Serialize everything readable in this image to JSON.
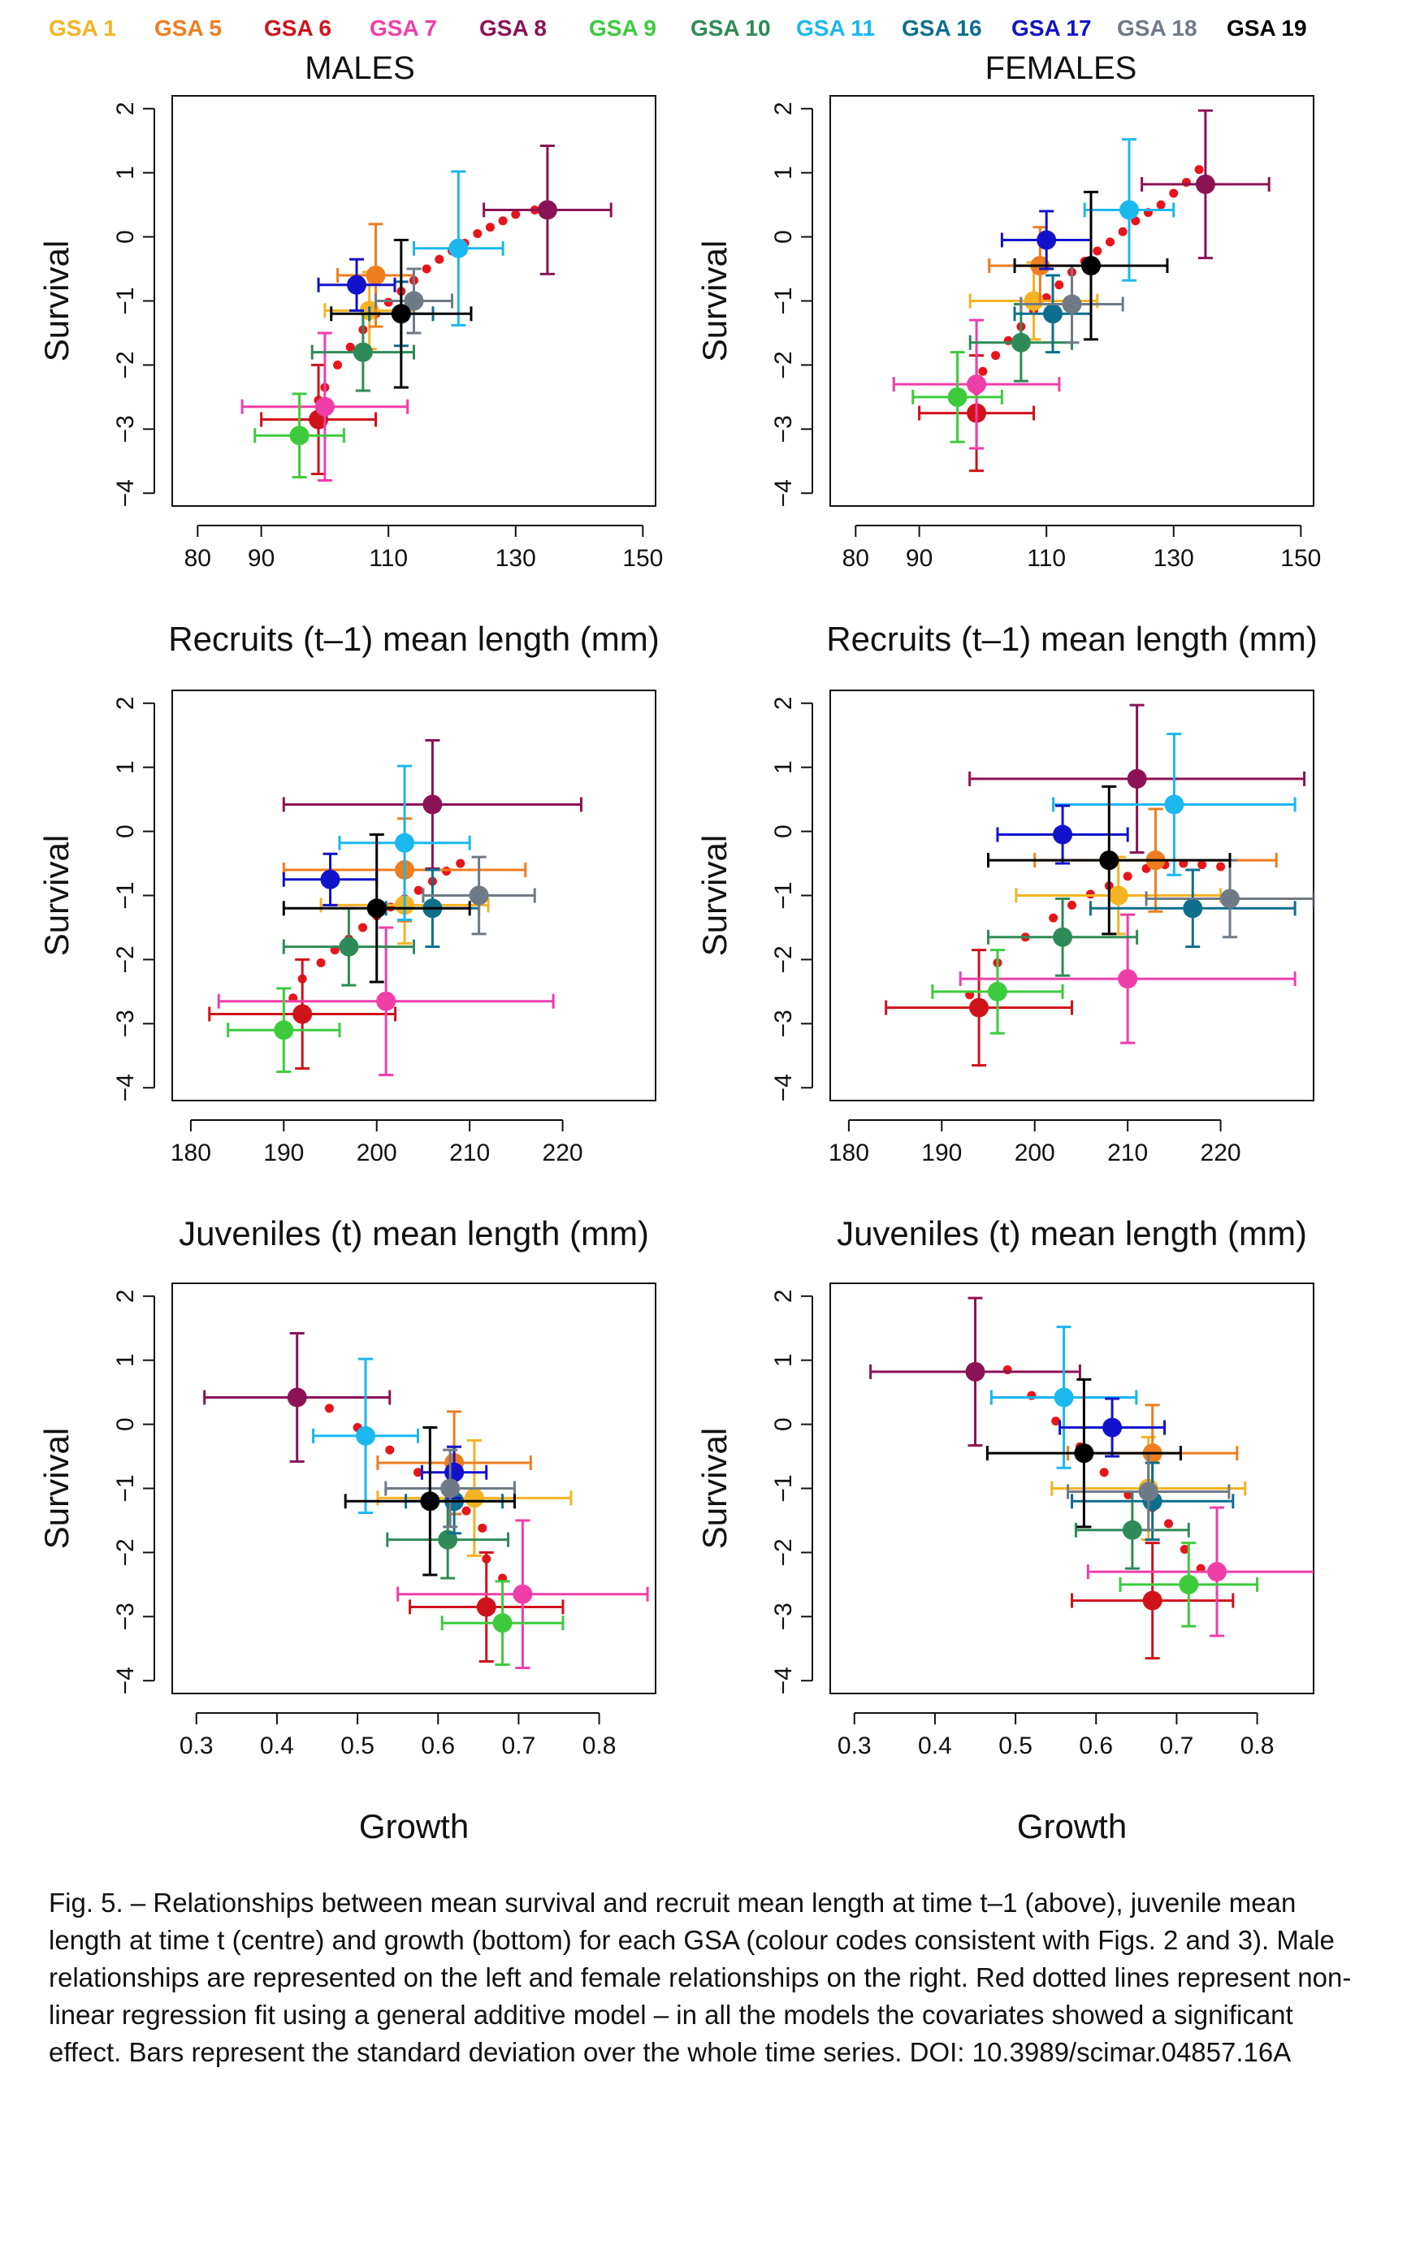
{
  "legend": [
    {
      "name": "GSA 1",
      "color": "#F5B324"
    },
    {
      "name": "GSA 5",
      "color": "#EE7D1F"
    },
    {
      "name": "GSA 6",
      "color": "#D0121B"
    },
    {
      "name": "GSA 7",
      "color": "#F03EA8"
    },
    {
      "name": "GSA 8",
      "color": "#8B1355"
    },
    {
      "name": "GSA 9",
      "color": "#3DCB3D"
    },
    {
      "name": "GSA 10",
      "color": "#2E8B57"
    },
    {
      "name": "GSA 11",
      "color": "#1BB8EE"
    },
    {
      "name": "GSA 16",
      "color": "#0E6E8E"
    },
    {
      "name": "GSA 17",
      "color": "#1212CC"
    },
    {
      "name": "GSA 18",
      "color": "#6F7A86"
    },
    {
      "name": "GSA 19",
      "color": "#000000"
    }
  ],
  "column_titles": [
    "MALES",
    "FEMALES"
  ],
  "caption": "Fig. 5. – Relationships between mean survival and recruit mean length at time t–1 (above), juvenile mean length at time t (centre) and growth (bottom) for each GSA (colour codes consistent with Figs. 2 and 3). Male relationships are represented on the left and female relationships on the right. Red dotted lines represent non-linear regression fit using a general additive model – in all the models the covariates showed a significant effect. Bars represent the standard deviation over the whole time series. DOI: 10.3989/scimar.04857.16A",
  "fit_color": "#E8141B",
  "chart_data": [
    {
      "type": "scatter",
      "panel": "males-recruits",
      "xlabel": "Recruits (t–1) mean length (mm)",
      "ylabel": "Survival",
      "xlim": [
        76,
        152
      ],
      "ylim": [
        -4.2,
        2.2
      ],
      "xticks": [
        80,
        90,
        110,
        130,
        150
      ],
      "yticks": [
        -4,
        -3,
        -2,
        -1,
        0,
        1,
        2
      ],
      "points": [
        {
          "gsa": "GSA 1",
          "x": 107,
          "y": -1.15,
          "xerr": 7,
          "yerr": 0.6
        },
        {
          "gsa": "GSA 5",
          "x": 108,
          "y": -0.6,
          "xerr": 6,
          "yerr": 0.8
        },
        {
          "gsa": "GSA 6",
          "x": 99,
          "y": -2.85,
          "xerr": 9,
          "yerr": 0.85
        },
        {
          "gsa": "GSA 7",
          "x": 100,
          "y": -2.65,
          "xerr": 13,
          "yerr": 1.15
        },
        {
          "gsa": "GSA 8",
          "x": 135,
          "y": 0.42,
          "xerr": 10,
          "yerr": 1.0
        },
        {
          "gsa": "GSA 9",
          "x": 96,
          "y": -3.1,
          "xerr": 7,
          "yerr": 0.65
        },
        {
          "gsa": "GSA 10",
          "x": 106,
          "y": -1.8,
          "xerr": 8,
          "yerr": 0.6
        },
        {
          "gsa": "GSA 11",
          "x": 121,
          "y": -0.18,
          "xerr": 7,
          "yerr": 1.2
        },
        {
          "gsa": "GSA 16",
          "x": 112,
          "y": -1.2,
          "xerr": 5,
          "yerr": 0.5
        },
        {
          "gsa": "GSA 17",
          "x": 105,
          "y": -0.75,
          "xerr": 6,
          "yerr": 0.4
        },
        {
          "gsa": "GSA 18",
          "x": 114,
          "y": -1.0,
          "xerr": 6,
          "yerr": 0.5
        },
        {
          "gsa": "GSA 19",
          "x": 112,
          "y": -1.2,
          "xerr": 11,
          "yerr": 1.15
        }
      ],
      "fit": [
        [
          99,
          -2.55
        ],
        [
          100,
          -2.35
        ],
        [
          102,
          -2.0
        ],
        [
          104,
          -1.72
        ],
        [
          106,
          -1.45
        ],
        [
          108,
          -1.2
        ],
        [
          110,
          -1.02
        ],
        [
          112,
          -0.85
        ],
        [
          114,
          -0.68
        ],
        [
          116,
          -0.5
        ],
        [
          118,
          -0.35
        ],
        [
          120,
          -0.22
        ],
        [
          122,
          -0.1
        ],
        [
          124,
          0.05
        ],
        [
          126,
          0.15
        ],
        [
          128,
          0.25
        ],
        [
          130,
          0.35
        ],
        [
          133,
          0.42
        ]
      ]
    },
    {
      "type": "scatter",
      "panel": "females-recruits",
      "xlabel": "Recruits (t–1) mean length (mm)",
      "ylabel": "Survival",
      "xlim": [
        76,
        152
      ],
      "ylim": [
        -4.2,
        2.2
      ],
      "xticks": [
        80,
        90,
        110,
        130,
        150
      ],
      "yticks": [
        -4,
        -3,
        -2,
        -1,
        0,
        1,
        2
      ],
      "points": [
        {
          "gsa": "GSA 1",
          "x": 108,
          "y": -1.0,
          "xerr": 10,
          "yerr": 0.6
        },
        {
          "gsa": "GSA 5",
          "x": 109,
          "y": -0.45,
          "xerr": 8,
          "yerr": 0.6
        },
        {
          "gsa": "GSA 6",
          "x": 99,
          "y": -2.75,
          "xerr": 9,
          "yerr": 0.9
        },
        {
          "gsa": "GSA 7",
          "x": 99,
          "y": -2.3,
          "xerr": 13,
          "yerr": 1.0
        },
        {
          "gsa": "GSA 8",
          "x": 135,
          "y": 0.82,
          "xerr": 10,
          "yerr": 1.15
        },
        {
          "gsa": "GSA 9",
          "x": 96,
          "y": -2.5,
          "xerr": 7,
          "yerr": 0.7
        },
        {
          "gsa": "GSA 10",
          "x": 106,
          "y": -1.65,
          "xerr": 8,
          "yerr": 0.6
        },
        {
          "gsa": "GSA 11",
          "x": 123,
          "y": 0.42,
          "xerr": 7,
          "yerr": 1.1
        },
        {
          "gsa": "GSA 16",
          "x": 111,
          "y": -1.2,
          "xerr": 6,
          "yerr": 0.6
        },
        {
          "gsa": "GSA 17",
          "x": 110,
          "y": -0.05,
          "xerr": 7,
          "yerr": 0.45
        },
        {
          "gsa": "GSA 18",
          "x": 114,
          "y": -1.05,
          "xerr": 8,
          "yerr": 0.6
        },
        {
          "gsa": "GSA 19",
          "x": 117,
          "y": -0.45,
          "xerr": 12,
          "yerr": 1.15
        }
      ],
      "fit": [
        [
          99,
          -2.4
        ],
        [
          100,
          -2.1
        ],
        [
          102,
          -1.85
        ],
        [
          104,
          -1.62
        ],
        [
          106,
          -1.4
        ],
        [
          108,
          -1.15
        ],
        [
          110,
          -0.95
        ],
        [
          112,
          -0.75
        ],
        [
          114,
          -0.55
        ],
        [
          116,
          -0.38
        ],
        [
          118,
          -0.22
        ],
        [
          120,
          -0.08
        ],
        [
          122,
          0.08
        ],
        [
          124,
          0.25
        ],
        [
          126,
          0.38
        ],
        [
          128,
          0.5
        ],
        [
          130,
          0.68
        ],
        [
          132,
          0.85
        ],
        [
          134,
          1.05
        ]
      ]
    },
    {
      "type": "scatter",
      "panel": "males-juveniles",
      "xlabel": "Juveniles (t) mean length (mm)",
      "ylabel": "Survival",
      "xlim": [
        178,
        230
      ],
      "ylim": [
        -4.2,
        2.2
      ],
      "xticks": [
        180,
        190,
        200,
        210,
        220
      ],
      "yticks": [
        -4,
        -3,
        -2,
        -1,
        0,
        1,
        2
      ],
      "points": [
        {
          "gsa": "GSA 1",
          "x": 203,
          "y": -1.15,
          "xerr": 9,
          "yerr": 0.6
        },
        {
          "gsa": "GSA 5",
          "x": 203,
          "y": -0.6,
          "xerr": 13,
          "yerr": 0.8
        },
        {
          "gsa": "GSA 6",
          "x": 192,
          "y": -2.85,
          "xerr": 10,
          "yerr": 0.85
        },
        {
          "gsa": "GSA 7",
          "x": 201,
          "y": -2.65,
          "xerr": 18,
          "yerr": 1.15
        },
        {
          "gsa": "GSA 8",
          "x": 206,
          "y": 0.42,
          "xerr": 16,
          "yerr": 1.0
        },
        {
          "gsa": "GSA 9",
          "x": 190,
          "y": -3.1,
          "xerr": 6,
          "yerr": 0.65
        },
        {
          "gsa": "GSA 10",
          "x": 197,
          "y": -1.8,
          "xerr": 7,
          "yerr": 0.6
        },
        {
          "gsa": "GSA 11",
          "x": 203,
          "y": -0.18,
          "xerr": 7,
          "yerr": 1.2
        },
        {
          "gsa": "GSA 16",
          "x": 206,
          "y": -1.2,
          "xerr": 5,
          "yerr": 0.6
        },
        {
          "gsa": "GSA 17",
          "x": 195,
          "y": -0.75,
          "xerr": 5,
          "yerr": 0.4
        },
        {
          "gsa": "GSA 18",
          "x": 211,
          "y": -1.0,
          "xerr": 6,
          "yerr": 0.6
        },
        {
          "gsa": "GSA 19",
          "x": 200,
          "y": -1.2,
          "xerr": 10,
          "yerr": 1.15
        }
      ],
      "fit": [
        [
          191,
          -2.6
        ],
        [
          192,
          -2.3
        ],
        [
          194,
          -2.05
        ],
        [
          195.5,
          -1.85
        ],
        [
          197,
          -1.68
        ],
        [
          198.5,
          -1.5
        ],
        [
          200,
          -1.32
        ],
        [
          201.5,
          -1.18
        ],
        [
          203,
          -1.05
        ],
        [
          204.5,
          -0.92
        ],
        [
          206,
          -0.78
        ],
        [
          207.5,
          -0.62
        ],
        [
          209,
          -0.5
        ]
      ]
    },
    {
      "type": "scatter",
      "panel": "females-juveniles",
      "xlabel": "Juveniles (t) mean length (mm)",
      "ylabel": "Survival",
      "xlim": [
        178,
        230
      ],
      "ylim": [
        -4.2,
        2.2
      ],
      "xticks": [
        180,
        190,
        200,
        210,
        220
      ],
      "yticks": [
        -4,
        -3,
        -2,
        -1,
        0,
        1,
        2
      ],
      "points": [
        {
          "gsa": "GSA 1",
          "x": 209,
          "y": -1.0,
          "xerr": 11,
          "yerr": 0.6
        },
        {
          "gsa": "GSA 5",
          "x": 213,
          "y": -0.45,
          "xerr": 13,
          "yerr": 0.8
        },
        {
          "gsa": "GSA 6",
          "x": 194,
          "y": -2.75,
          "xerr": 10,
          "yerr": 0.9
        },
        {
          "gsa": "GSA 7",
          "x": 210,
          "y": -2.3,
          "xerr": 18,
          "yerr": 1.0
        },
        {
          "gsa": "GSA 8",
          "x": 211,
          "y": 0.82,
          "xerr": 18,
          "yerr": 1.15
        },
        {
          "gsa": "GSA 9",
          "x": 196,
          "y": -2.5,
          "xerr": 7,
          "yerr": 0.65
        },
        {
          "gsa": "GSA 10",
          "x": 203,
          "y": -1.65,
          "xerr": 8,
          "yerr": 0.6
        },
        {
          "gsa": "GSA 11",
          "x": 215,
          "y": 0.42,
          "xerr": 13,
          "yerr": 1.1
        },
        {
          "gsa": "GSA 16",
          "x": 217,
          "y": -1.2,
          "xerr": 11,
          "yerr": 0.6
        },
        {
          "gsa": "GSA 17",
          "x": 203,
          "y": -0.05,
          "xerr": 7,
          "yerr": 0.45
        },
        {
          "gsa": "GSA 18",
          "x": 221,
          "y": -1.05,
          "xerr": 9,
          "yerr": 0.6
        },
        {
          "gsa": "GSA 19",
          "x": 208,
          "y": -0.45,
          "xerr": 13,
          "yerr": 1.15
        }
      ],
      "fit": [
        [
          193,
          -2.55
        ],
        [
          196,
          -2.05
        ],
        [
          199,
          -1.65
        ],
        [
          202,
          -1.35
        ],
        [
          204,
          -1.15
        ],
        [
          206,
          -0.98
        ],
        [
          208,
          -0.85
        ],
        [
          210,
          -0.7
        ],
        [
          212,
          -0.58
        ],
        [
          214,
          -0.52
        ],
        [
          216,
          -0.5
        ],
        [
          218,
          -0.52
        ],
        [
          220,
          -0.55
        ]
      ]
    },
    {
      "type": "scatter",
      "panel": "males-growth",
      "xlabel": "Growth",
      "ylabel": "Survival",
      "xlim": [
        0.27,
        0.87
      ],
      "ylim": [
        -4.2,
        2.2
      ],
      "xticks": [
        0.3,
        0.4,
        0.5,
        0.6,
        0.7,
        0.8
      ],
      "yticks": [
        -4,
        -3,
        -2,
        -1,
        0,
        1,
        2
      ],
      "points": [
        {
          "gsa": "GSA 1",
          "x": 0.645,
          "y": -1.15,
          "xerr": 0.12,
          "yerr": 0.9
        },
        {
          "gsa": "GSA 5",
          "x": 0.62,
          "y": -0.6,
          "xerr": 0.095,
          "yerr": 0.8
        },
        {
          "gsa": "GSA 6",
          "x": 0.66,
          "y": -2.85,
          "xerr": 0.095,
          "yerr": 0.85
        },
        {
          "gsa": "GSA 7",
          "x": 0.705,
          "y": -2.65,
          "xerr": 0.155,
          "yerr": 1.15
        },
        {
          "gsa": "GSA 8",
          "x": 0.425,
          "y": 0.42,
          "xerr": 0.115,
          "yerr": 1.0
        },
        {
          "gsa": "GSA 9",
          "x": 0.68,
          "y": -3.1,
          "xerr": 0.075,
          "yerr": 0.65
        },
        {
          "gsa": "GSA 10",
          "x": 0.612,
          "y": -1.8,
          "xerr": 0.075,
          "yerr": 0.6
        },
        {
          "gsa": "GSA 11",
          "x": 0.51,
          "y": -0.18,
          "xerr": 0.065,
          "yerr": 1.2
        },
        {
          "gsa": "GSA 16",
          "x": 0.62,
          "y": -1.2,
          "xerr": 0.06,
          "yerr": 0.5
        },
        {
          "gsa": "GSA 17",
          "x": 0.62,
          "y": -0.75,
          "xerr": 0.04,
          "yerr": 0.4
        },
        {
          "gsa": "GSA 18",
          "x": 0.615,
          "y": -1.0,
          "xerr": 0.08,
          "yerr": 0.6
        },
        {
          "gsa": "GSA 19",
          "x": 0.59,
          "y": -1.2,
          "xerr": 0.105,
          "yerr": 1.15
        }
      ],
      "fit": [
        [
          0.465,
          0.25
        ],
        [
          0.5,
          -0.05
        ],
        [
          0.54,
          -0.4
        ],
        [
          0.575,
          -0.75
        ],
        [
          0.61,
          -1.05
        ],
        [
          0.635,
          -1.35
        ],
        [
          0.655,
          -1.62
        ],
        [
          0.66,
          -2.1
        ],
        [
          0.68,
          -2.4
        ]
      ]
    },
    {
      "type": "scatter",
      "panel": "females-growth",
      "xlabel": "Growth",
      "ylabel": "Survival",
      "xlim": [
        0.27,
        0.87
      ],
      "ylim": [
        -4.2,
        2.2
      ],
      "xticks": [
        0.3,
        0.4,
        0.5,
        0.6,
        0.7,
        0.8
      ],
      "yticks": [
        -4,
        -3,
        -2,
        -1,
        0,
        1,
        2
      ],
      "points": [
        {
          "gsa": "GSA 1",
          "x": 0.665,
          "y": -1.0,
          "xerr": 0.12,
          "yerr": 0.8
        },
        {
          "gsa": "GSA 5",
          "x": 0.67,
          "y": -0.45,
          "xerr": 0.105,
          "yerr": 0.75
        },
        {
          "gsa": "GSA 6",
          "x": 0.67,
          "y": -2.75,
          "xerr": 0.1,
          "yerr": 0.9
        },
        {
          "gsa": "GSA 7",
          "x": 0.75,
          "y": -2.3,
          "xerr": 0.16,
          "yerr": 1.0
        },
        {
          "gsa": "GSA 8",
          "x": 0.45,
          "y": 0.82,
          "xerr": 0.13,
          "yerr": 1.15
        },
        {
          "gsa": "GSA 9",
          "x": 0.715,
          "y": -2.5,
          "xerr": 0.085,
          "yerr": 0.65
        },
        {
          "gsa": "GSA 10",
          "x": 0.645,
          "y": -1.65,
          "xerr": 0.07,
          "yerr": 0.6
        },
        {
          "gsa": "GSA 11",
          "x": 0.56,
          "y": 0.42,
          "xerr": 0.09,
          "yerr": 1.1
        },
        {
          "gsa": "GSA 16",
          "x": 0.67,
          "y": -1.2,
          "xerr": 0.1,
          "yerr": 0.6
        },
        {
          "gsa": "GSA 17",
          "x": 0.62,
          "y": -0.05,
          "xerr": 0.065,
          "yerr": 0.45
        },
        {
          "gsa": "GSA 18",
          "x": 0.665,
          "y": -1.05,
          "xerr": 0.1,
          "yerr": 0.6
        },
        {
          "gsa": "GSA 19",
          "x": 0.585,
          "y": -0.45,
          "xerr": 0.12,
          "yerr": 1.15
        }
      ],
      "fit": [
        [
          0.49,
          0.85
        ],
        [
          0.52,
          0.45
        ],
        [
          0.55,
          0.05
        ],
        [
          0.58,
          -0.35
        ],
        [
          0.61,
          -0.75
        ],
        [
          0.64,
          -1.1
        ],
        [
          0.67,
          -1.3
        ],
        [
          0.69,
          -1.55
        ],
        [
          0.71,
          -1.95
        ],
        [
          0.73,
          -2.25
        ]
      ]
    }
  ]
}
